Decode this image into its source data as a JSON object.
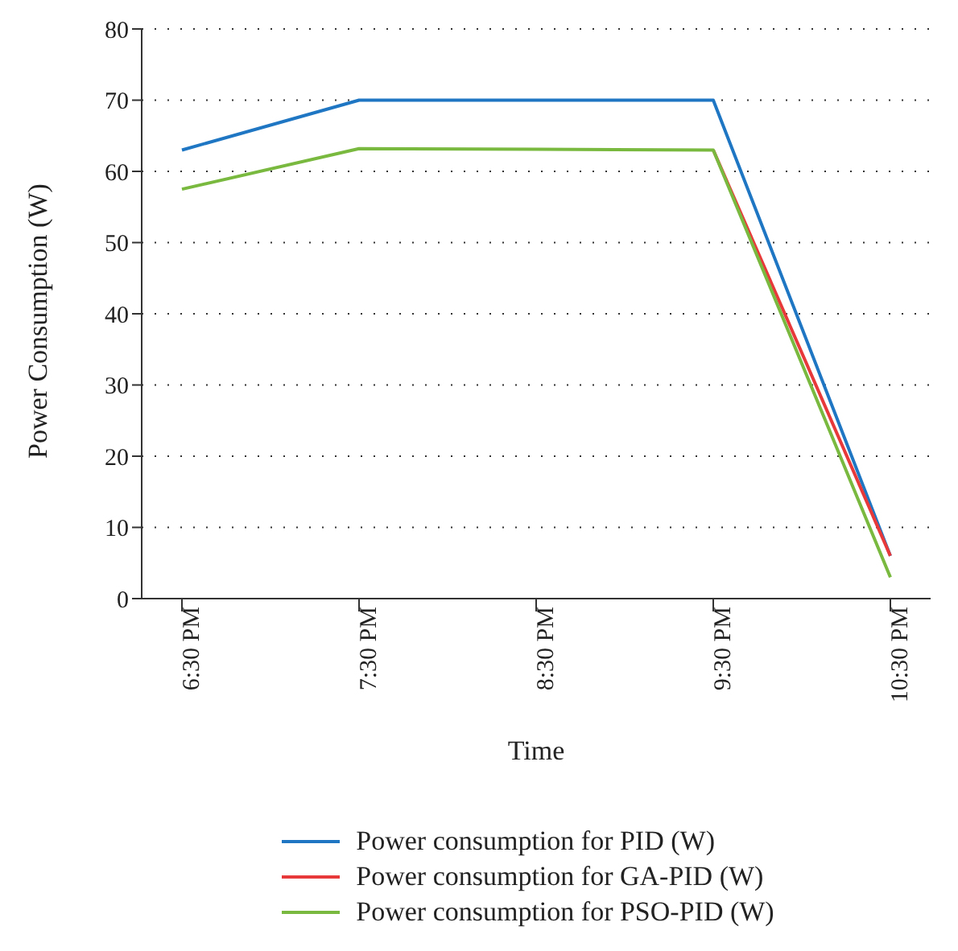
{
  "chart_data": {
    "type": "line",
    "xlabel": "Time",
    "ylabel": "Power Consumption (W)",
    "categories": [
      "6:30 PM",
      "7:30 PM",
      "8:30 PM",
      "9:30 PM",
      "10:30 PM"
    ],
    "series": [
      {
        "name": "Power consumption for PID (W)",
        "color": "#1f77c4",
        "values": [
          63,
          70,
          70,
          70,
          6
        ]
      },
      {
        "name": "Power consumption for GA-PID (W)",
        "color": "#e8393a",
        "values": [
          null,
          null,
          null,
          63,
          6
        ]
      },
      {
        "name": "Power consumption for PSO-PID (W)",
        "color": "#7ab93f",
        "values": [
          57.5,
          63.2,
          63.1,
          63,
          3
        ]
      }
    ],
    "ylim": [
      0,
      80
    ],
    "yticks": [
      0,
      10,
      20,
      30,
      40,
      50,
      60,
      70,
      80
    ],
    "grid": "y",
    "legend": "bottom",
    "marker": "none",
    "line_style": "solid"
  }
}
